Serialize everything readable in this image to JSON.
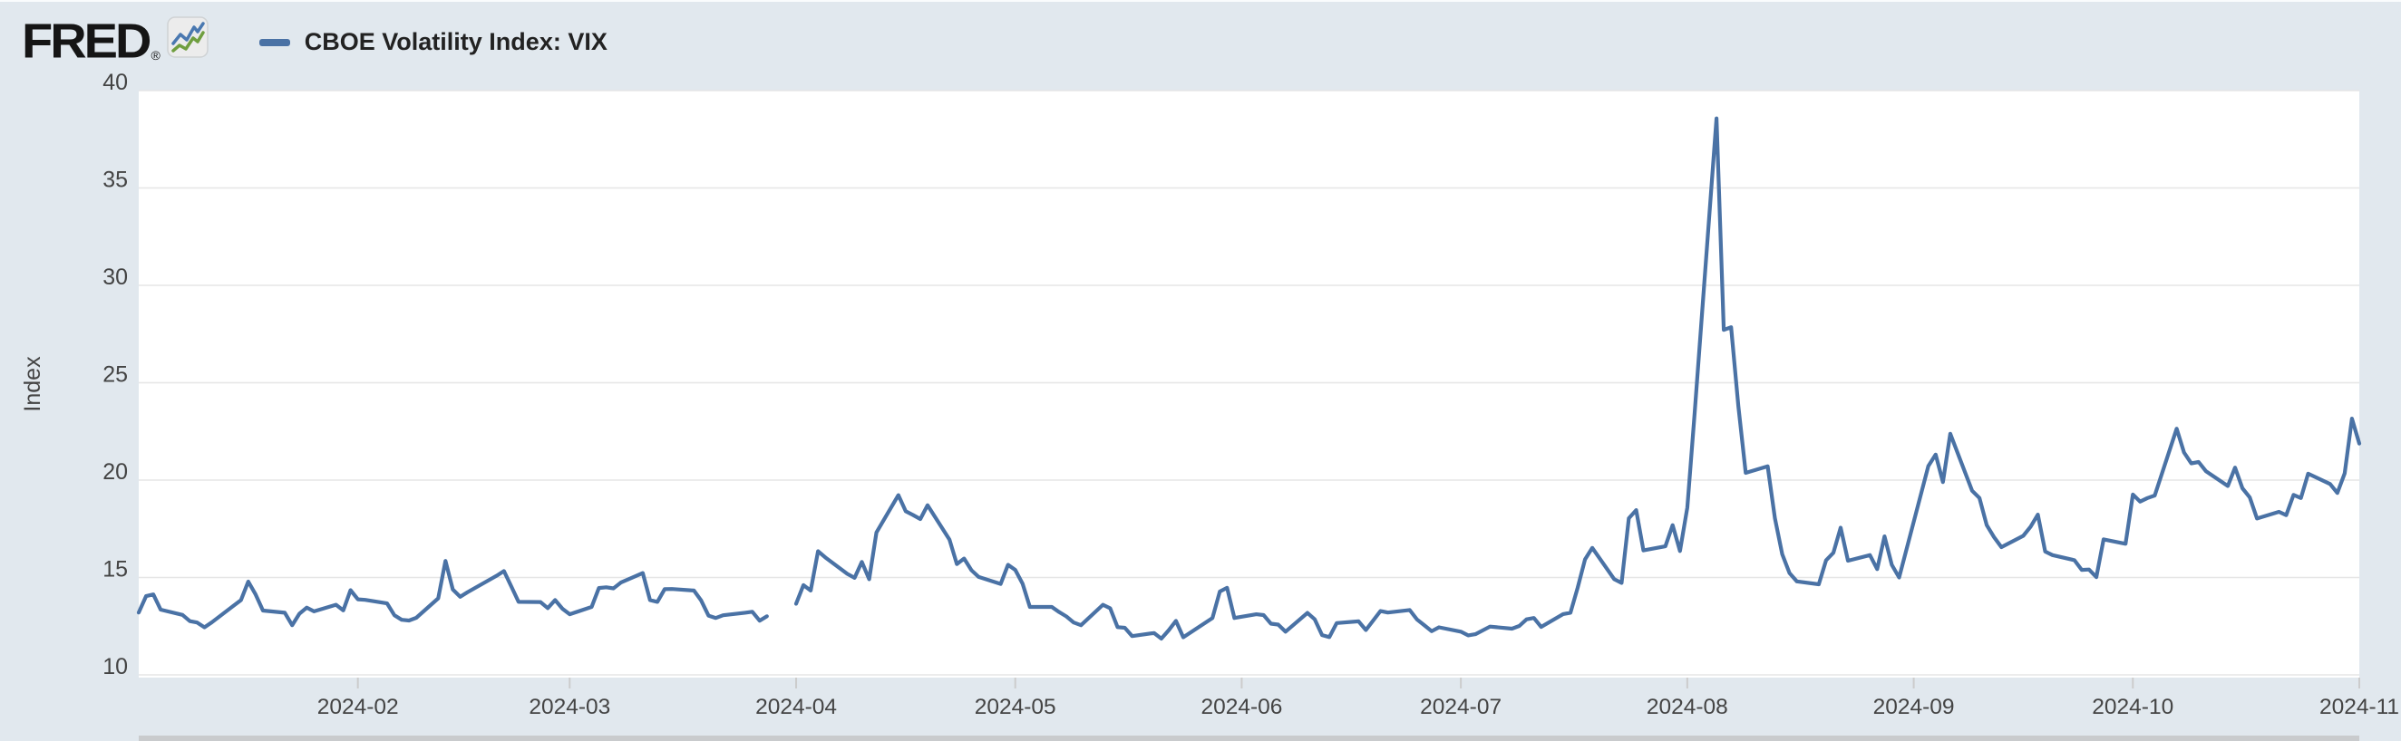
{
  "header": {
    "logo_text": "FRED",
    "registered_mark": "®",
    "legend": {
      "label": "CBOE Volatility Index: VIX",
      "swatch_color": "#4a72a5"
    }
  },
  "colors": {
    "background": "#e1e8ee",
    "plot_background": "#ffffff",
    "gridline": "#e6e6e6",
    "axis_text": "#444444",
    "tick_mark": "#cccccc",
    "line": "#4a72a5",
    "bottom_bar": "#c9cbcd",
    "logo": "#151515"
  },
  "chart_data": {
    "type": "line",
    "title": "CBOE Volatility Index: VIX",
    "ylabel": "Index",
    "xlabel": "",
    "grid": true,
    "legend_position": "top-left",
    "line_color": "#4a72a5",
    "ylim": [
      10,
      40
    ],
    "y_ticks": [
      10,
      15,
      20,
      25,
      30,
      35,
      40
    ],
    "x_range": [
      "2024-01-02",
      "2024-11-01"
    ],
    "x_ticks": [
      {
        "date": "2024-02-01",
        "label": "2024-02"
      },
      {
        "date": "2024-03-01",
        "label": "2024-03"
      },
      {
        "date": "2024-04-01",
        "label": "2024-04"
      },
      {
        "date": "2024-05-01",
        "label": "2024-05"
      },
      {
        "date": "2024-06-01",
        "label": "2024-06"
      },
      {
        "date": "2024-07-01",
        "label": "2024-07"
      },
      {
        "date": "2024-08-01",
        "label": "2024-08"
      },
      {
        "date": "2024-09-01",
        "label": "2024-09"
      },
      {
        "date": "2024-10-01",
        "label": "2024-10"
      },
      {
        "date": "2024-11-01",
        "label": "2024-11"
      }
    ],
    "series": [
      {
        "name": "CBOE Volatility Index: VIX",
        "points": [
          [
            "2024-01-02",
            13.2
          ],
          [
            "2024-01-03",
            14.04
          ],
          [
            "2024-01-04",
            14.13
          ],
          [
            "2024-01-05",
            13.35
          ],
          [
            "2024-01-08",
            13.08
          ],
          [
            "2024-01-09",
            12.76
          ],
          [
            "2024-01-10",
            12.69
          ],
          [
            "2024-01-11",
            12.44
          ],
          [
            "2024-01-12",
            12.7
          ],
          [
            "2024-01-16",
            13.84
          ],
          [
            "2024-01-17",
            14.79
          ],
          [
            "2024-01-18",
            14.13
          ],
          [
            "2024-01-19",
            13.3
          ],
          [
            "2024-01-22",
            13.19
          ],
          [
            "2024-01-23",
            12.55
          ],
          [
            "2024-01-24",
            13.14
          ],
          [
            "2024-01-25",
            13.45
          ],
          [
            "2024-01-26",
            13.26
          ],
          [
            "2024-01-29",
            13.6
          ],
          [
            "2024-01-30",
            13.31
          ],
          [
            "2024-01-31",
            14.35
          ],
          [
            "2024-02-01",
            13.88
          ],
          [
            "2024-02-02",
            13.85
          ],
          [
            "2024-02-05",
            13.67
          ],
          [
            "2024-02-06",
            13.06
          ],
          [
            "2024-02-07",
            12.83
          ],
          [
            "2024-02-08",
            12.79
          ],
          [
            "2024-02-09",
            12.93
          ],
          [
            "2024-02-12",
            13.93
          ],
          [
            "2024-02-13",
            15.85
          ],
          [
            "2024-02-14",
            14.38
          ],
          [
            "2024-02-15",
            14.01
          ],
          [
            "2024-02-16",
            14.24
          ],
          [
            "2024-02-20",
            15.09
          ],
          [
            "2024-02-21",
            15.33
          ],
          [
            "2024-02-22",
            14.54
          ],
          [
            "2024-02-23",
            13.75
          ],
          [
            "2024-02-26",
            13.74
          ],
          [
            "2024-02-27",
            13.43
          ],
          [
            "2024-02-28",
            13.84
          ],
          [
            "2024-02-29",
            13.4
          ],
          [
            "2024-03-01",
            13.11
          ],
          [
            "2024-03-04",
            13.49
          ],
          [
            "2024-03-05",
            14.46
          ],
          [
            "2024-03-06",
            14.5
          ],
          [
            "2024-03-07",
            14.44
          ],
          [
            "2024-03-08",
            14.74
          ],
          [
            "2024-03-11",
            15.23
          ],
          [
            "2024-03-12",
            13.84
          ],
          [
            "2024-03-13",
            13.75
          ],
          [
            "2024-03-14",
            14.4
          ],
          [
            "2024-03-15",
            14.41
          ],
          [
            "2024-03-18",
            14.33
          ],
          [
            "2024-03-19",
            13.82
          ],
          [
            "2024-03-20",
            13.04
          ],
          [
            "2024-03-21",
            12.92
          ],
          [
            "2024-03-22",
            13.06
          ],
          [
            "2024-03-25",
            13.19
          ],
          [
            "2024-03-26",
            13.24
          ],
          [
            "2024-03-27",
            12.78
          ],
          [
            "2024-03-28",
            13.01
          ],
          [
            "2024-03-29",
            null
          ],
          [
            "2024-04-01",
            13.65
          ],
          [
            "2024-04-02",
            14.61
          ],
          [
            "2024-04-03",
            14.33
          ],
          [
            "2024-04-04",
            16.35
          ],
          [
            "2024-04-05",
            16.03
          ],
          [
            "2024-04-08",
            15.19
          ],
          [
            "2024-04-09",
            14.98
          ],
          [
            "2024-04-10",
            15.8
          ],
          [
            "2024-04-11",
            14.91
          ],
          [
            "2024-04-12",
            17.31
          ],
          [
            "2024-04-15",
            19.23
          ],
          [
            "2024-04-16",
            18.4
          ],
          [
            "2024-04-17",
            18.21
          ],
          [
            "2024-04-18",
            18.0
          ],
          [
            "2024-04-19",
            18.71
          ],
          [
            "2024-04-22",
            16.94
          ],
          [
            "2024-04-23",
            15.69
          ],
          [
            "2024-04-24",
            15.97
          ],
          [
            "2024-04-25",
            15.37
          ],
          [
            "2024-04-26",
            15.03
          ],
          [
            "2024-04-29",
            14.67
          ],
          [
            "2024-04-30",
            15.65
          ],
          [
            "2024-05-01",
            15.39
          ],
          [
            "2024-05-02",
            14.68
          ],
          [
            "2024-05-03",
            13.49
          ],
          [
            "2024-05-06",
            13.49
          ],
          [
            "2024-05-07",
            13.23
          ],
          [
            "2024-05-08",
            13.0
          ],
          [
            "2024-05-09",
            12.69
          ],
          [
            "2024-05-10",
            12.55
          ],
          [
            "2024-05-13",
            13.6
          ],
          [
            "2024-05-14",
            13.42
          ],
          [
            "2024-05-15",
            12.45
          ],
          [
            "2024-05-16",
            12.42
          ],
          [
            "2024-05-17",
            11.99
          ],
          [
            "2024-05-20",
            12.15
          ],
          [
            "2024-05-21",
            11.86
          ],
          [
            "2024-05-22",
            12.29
          ],
          [
            "2024-05-23",
            12.77
          ],
          [
            "2024-05-24",
            11.93
          ],
          [
            "2024-05-28",
            12.92
          ],
          [
            "2024-05-29",
            14.28
          ],
          [
            "2024-05-30",
            14.47
          ],
          [
            "2024-05-31",
            12.92
          ],
          [
            "2024-06-03",
            13.11
          ],
          [
            "2024-06-04",
            13.07
          ],
          [
            "2024-06-05",
            12.63
          ],
          [
            "2024-06-06",
            12.58
          ],
          [
            "2024-06-07",
            12.22
          ],
          [
            "2024-06-10",
            13.18
          ],
          [
            "2024-06-11",
            12.85
          ],
          [
            "2024-06-12",
            12.04
          ],
          [
            "2024-06-13",
            11.94
          ],
          [
            "2024-06-14",
            12.66
          ],
          [
            "2024-06-17",
            12.75
          ],
          [
            "2024-06-18",
            12.3
          ],
          [
            "2024-06-20",
            13.28
          ],
          [
            "2024-06-21",
            13.2
          ],
          [
            "2024-06-24",
            13.33
          ],
          [
            "2024-06-25",
            12.84
          ],
          [
            "2024-06-26",
            12.55
          ],
          [
            "2024-06-27",
            12.24
          ],
          [
            "2024-06-28",
            12.44
          ],
          [
            "2024-07-01",
            12.22
          ],
          [
            "2024-07-02",
            12.03
          ],
          [
            "2024-07-03",
            12.09
          ],
          [
            "2024-07-05",
            12.48
          ],
          [
            "2024-07-08",
            12.37
          ],
          [
            "2024-07-09",
            12.51
          ],
          [
            "2024-07-10",
            12.85
          ],
          [
            "2024-07-11",
            12.92
          ],
          [
            "2024-07-12",
            12.46
          ],
          [
            "2024-07-15",
            13.12
          ],
          [
            "2024-07-16",
            13.19
          ],
          [
            "2024-07-17",
            14.48
          ],
          [
            "2024-07-18",
            15.93
          ],
          [
            "2024-07-19",
            16.52
          ],
          [
            "2024-07-22",
            14.91
          ],
          [
            "2024-07-23",
            14.72
          ],
          [
            "2024-07-24",
            18.04
          ],
          [
            "2024-07-25",
            18.46
          ],
          [
            "2024-07-26",
            16.39
          ],
          [
            "2024-07-29",
            16.6
          ],
          [
            "2024-07-30",
            17.69
          ],
          [
            "2024-07-31",
            16.36
          ],
          [
            "2024-08-01",
            18.59
          ],
          [
            "2024-08-02",
            23.39
          ],
          [
            "2024-08-05",
            38.57
          ],
          [
            "2024-08-06",
            27.71
          ],
          [
            "2024-08-07",
            27.85
          ],
          [
            "2024-08-08",
            23.79
          ],
          [
            "2024-08-09",
            20.37
          ],
          [
            "2024-08-12",
            20.71
          ],
          [
            "2024-08-13",
            18.04
          ],
          [
            "2024-08-14",
            16.19
          ],
          [
            "2024-08-15",
            15.23
          ],
          [
            "2024-08-16",
            14.8
          ],
          [
            "2024-08-19",
            14.65
          ],
          [
            "2024-08-20",
            15.88
          ],
          [
            "2024-08-21",
            16.27
          ],
          [
            "2024-08-22",
            17.56
          ],
          [
            "2024-08-23",
            15.86
          ],
          [
            "2024-08-26",
            16.15
          ],
          [
            "2024-08-27",
            15.43
          ],
          [
            "2024-08-28",
            17.11
          ],
          [
            "2024-08-29",
            15.65
          ],
          [
            "2024-08-30",
            15.0
          ],
          [
            "2024-09-03",
            20.72
          ],
          [
            "2024-09-04",
            21.31
          ],
          [
            "2024-09-05",
            19.9
          ],
          [
            "2024-09-06",
            22.38
          ],
          [
            "2024-09-09",
            19.45
          ],
          [
            "2024-09-10",
            19.08
          ],
          [
            "2024-09-11",
            17.69
          ],
          [
            "2024-09-12",
            17.07
          ],
          [
            "2024-09-13",
            16.56
          ],
          [
            "2024-09-16",
            17.14
          ],
          [
            "2024-09-17",
            17.61
          ],
          [
            "2024-09-18",
            18.23
          ],
          [
            "2024-09-19",
            16.33
          ],
          [
            "2024-09-20",
            16.15
          ],
          [
            "2024-09-23",
            15.89
          ],
          [
            "2024-09-24",
            15.39
          ],
          [
            "2024-09-25",
            15.41
          ],
          [
            "2024-09-26",
            15.02
          ],
          [
            "2024-09-27",
            16.96
          ],
          [
            "2024-09-30",
            16.73
          ],
          [
            "2024-10-01",
            19.26
          ],
          [
            "2024-10-02",
            18.9
          ],
          [
            "2024-10-03",
            19.08
          ],
          [
            "2024-10-04",
            19.21
          ],
          [
            "2024-10-07",
            22.64
          ],
          [
            "2024-10-08",
            21.42
          ],
          [
            "2024-10-09",
            20.86
          ],
          [
            "2024-10-10",
            20.93
          ],
          [
            "2024-10-11",
            20.46
          ],
          [
            "2024-10-14",
            19.7
          ],
          [
            "2024-10-15",
            20.64
          ],
          [
            "2024-10-16",
            19.58
          ],
          [
            "2024-10-17",
            19.11
          ],
          [
            "2024-10-18",
            18.03
          ],
          [
            "2024-10-21",
            18.37
          ],
          [
            "2024-10-22",
            18.2
          ],
          [
            "2024-10-23",
            19.24
          ],
          [
            "2024-10-24",
            19.08
          ],
          [
            "2024-10-25",
            20.33
          ],
          [
            "2024-10-28",
            19.8
          ],
          [
            "2024-10-29",
            19.34
          ],
          [
            "2024-10-30",
            20.35
          ],
          [
            "2024-10-31",
            23.16
          ],
          [
            "2024-11-01",
            21.88
          ]
        ]
      }
    ]
  }
}
